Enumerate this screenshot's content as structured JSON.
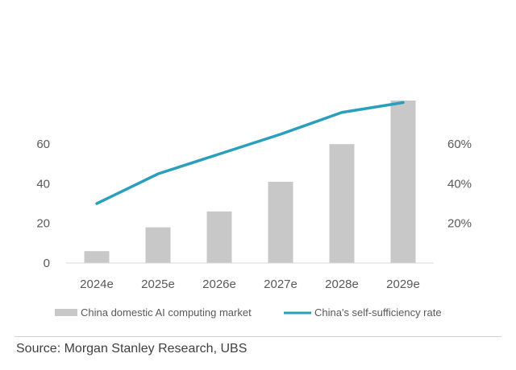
{
  "chart_data": {
    "type": "bar",
    "categories": [
      "2024e",
      "2025e",
      "2026e",
      "2027e",
      "2028e",
      "2029e"
    ],
    "series": [
      {
        "name": "China domestic AI computing market",
        "type": "bar",
        "axis": "left",
        "values": [
          6,
          18,
          26,
          41,
          60,
          82
        ],
        "color": "#c8c8c8"
      },
      {
        "name": "China's self-sufficiency rate",
        "type": "line",
        "axis": "right",
        "values": [
          0.3,
          0.45,
          0.55,
          0.65,
          0.76,
          0.81
        ],
        "color": "#2a9fbc"
      }
    ],
    "y_left": {
      "ticks": [
        0,
        20,
        40,
        60
      ],
      "ylim": [
        0,
        82
      ]
    },
    "y_right": {
      "ticks": [
        "20%",
        "40%",
        "60%"
      ],
      "tick_values": [
        0.2,
        0.4,
        0.6
      ],
      "ylim": [
        0,
        0.82
      ]
    },
    "grid": false,
    "legend_position": "bottom"
  },
  "legend": {
    "bar_label": "China domestic AI computing market",
    "line_label": "China's self-sufficiency rate"
  },
  "source": "Source: Morgan Stanley Research, UBS"
}
